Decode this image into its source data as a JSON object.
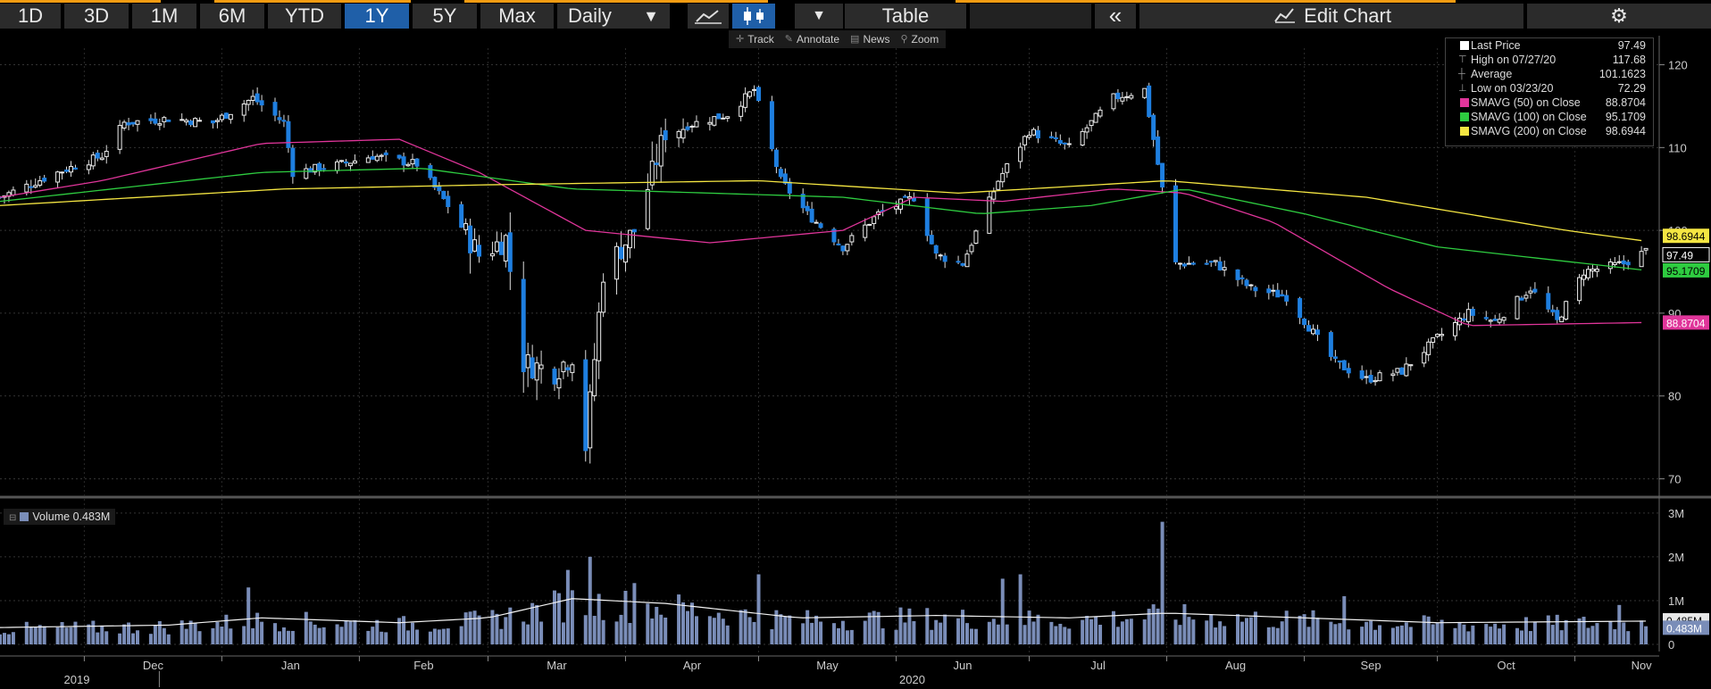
{
  "toolbar": {
    "ranges": [
      "1D",
      "3D",
      "1M",
      "6M",
      "YTD",
      "1Y",
      "5Y",
      "Max"
    ],
    "active_range": "1Y",
    "frequency": "Daily",
    "table_label": "Table",
    "edit_chart_label": "Edit Chart"
  },
  "subtoolbar": {
    "track": "Track",
    "annotate": "Annotate",
    "news": "News",
    "zoom": "Zoom"
  },
  "legend": {
    "last_price": {
      "label": "Last Price",
      "value": "97.49"
    },
    "high": {
      "label": "High on 07/27/20",
      "value": "117.68"
    },
    "average": {
      "label": "Average",
      "value": "101.1623"
    },
    "low": {
      "label": "Low on 03/23/20",
      "value": "72.29"
    },
    "sma50": {
      "label": "SMAVG (50)  on Close",
      "value": "88.8704",
      "color": "#e0359a"
    },
    "sma100": {
      "label": "SMAVG (100)  on Close",
      "value": "95.1709",
      "color": "#2ecc40"
    },
    "sma200": {
      "label": "SMAVG (200)  on Close",
      "value": "98.6944",
      "color": "#f5e642"
    }
  },
  "volume_legend": {
    "label": "Volume",
    "value": "0.483M"
  },
  "chart_data": [
    {
      "type": "candlestick",
      "title": "",
      "y_ticks": [
        70,
        80,
        90,
        100,
        110,
        120
      ],
      "ylim": [
        68,
        122
      ],
      "x_tick_labels": [
        "Dec",
        "Jan",
        "Feb",
        "Mar",
        "Apr",
        "May",
        "Jun",
        "Jul",
        "Aug",
        "Sep",
        "Oct",
        "Nov"
      ],
      "year_labels": [
        "2019",
        "2020"
      ],
      "close_anchors": [
        [
          "2019-11-12",
          104
        ],
        [
          "2019-11-25",
          107
        ],
        [
          "2019-12-05",
          109
        ],
        [
          "2019-12-10",
          113
        ],
        [
          "2019-12-20",
          113.5
        ],
        [
          "2019-12-30",
          113
        ],
        [
          "2020-01-08",
          116
        ],
        [
          "2020-01-15",
          113
        ],
        [
          "2020-01-17",
          107
        ],
        [
          "2020-01-28",
          108
        ],
        [
          "2020-02-04",
          109
        ],
        [
          "2020-02-14",
          108
        ],
        [
          "2020-02-21",
          103
        ],
        [
          "2020-02-28",
          97
        ],
        [
          "2020-03-05",
          99
        ],
        [
          "2020-03-09",
          84
        ],
        [
          "2020-03-16",
          83
        ],
        [
          "2020-03-20",
          85
        ],
        [
          "2020-03-23",
          74
        ],
        [
          "2020-03-27",
          95
        ],
        [
          "2020-04-03",
          100
        ],
        [
          "2020-04-10",
          112
        ],
        [
          "2020-04-17",
          113
        ],
        [
          "2020-04-24",
          114
        ],
        [
          "2020-04-30",
          117
        ],
        [
          "2020-05-06",
          106
        ],
        [
          "2020-05-12",
          102
        ],
        [
          "2020-05-20",
          98
        ],
        [
          "2020-05-28",
          102
        ],
        [
          "2020-06-05",
          104
        ],
        [
          "2020-06-10",
          97
        ],
        [
          "2020-06-16",
          96
        ],
        [
          "2020-06-24",
          106
        ],
        [
          "2020-07-01",
          112
        ],
        [
          "2020-07-10",
          110
        ],
        [
          "2020-07-20",
          116
        ],
        [
          "2020-07-27",
          117
        ],
        [
          "2020-08-03",
          96
        ],
        [
          "2020-08-12",
          96
        ],
        [
          "2020-08-20",
          93
        ],
        [
          "2020-08-28",
          92
        ],
        [
          "2020-09-08",
          84
        ],
        [
          "2020-09-15",
          82
        ],
        [
          "2020-09-23",
          83
        ],
        [
          "2020-10-01",
          87
        ],
        [
          "2020-10-08",
          90
        ],
        [
          "2020-10-14",
          89
        ],
        [
          "2020-10-22",
          93
        ],
        [
          "2020-10-28",
          89
        ],
        [
          "2020-11-03",
          95
        ],
        [
          "2020-11-12",
          96
        ],
        [
          "2020-11-17",
          97.49
        ]
      ],
      "series": [
        {
          "name": "SMAVG (50) on Close",
          "color": "#e0359a",
          "points": [
            [
              "2019-11-12",
              104
            ],
            [
              "2019-12-05",
              106
            ],
            [
              "2020-01-10",
              110.5
            ],
            [
              "2020-02-10",
              111
            ],
            [
              "2020-02-28",
              107
            ],
            [
              "2020-03-23",
              100
            ],
            [
              "2020-04-20",
              98.5
            ],
            [
              "2020-05-20",
              100
            ],
            [
              "2020-06-05",
              104
            ],
            [
              "2020-06-25",
              103.5
            ],
            [
              "2020-07-20",
              105
            ],
            [
              "2020-08-05",
              104.5
            ],
            [
              "2020-08-25",
              101
            ],
            [
              "2020-09-20",
              93
            ],
            [
              "2020-10-08",
              88.5
            ],
            [
              "2020-11-17",
              88.8704
            ]
          ]
        },
        {
          "name": "SMAVG (100) on Close",
          "color": "#2ecc40",
          "points": [
            [
              "2019-11-12",
              103.5
            ],
            [
              "2020-01-10",
              107
            ],
            [
              "2020-02-15",
              107.5
            ],
            [
              "2020-03-20",
              105
            ],
            [
              "2020-04-20",
              104.5
            ],
            [
              "2020-05-20",
              104
            ],
            [
              "2020-06-20",
              102
            ],
            [
              "2020-07-15",
              103
            ],
            [
              "2020-08-05",
              105
            ],
            [
              "2020-09-01",
              102
            ],
            [
              "2020-10-01",
              98
            ],
            [
              "2020-11-17",
              95.1709
            ]
          ]
        },
        {
          "name": "SMAVG (200) on Close",
          "color": "#f5e642",
          "points": [
            [
              "2019-11-12",
              103
            ],
            [
              "2020-01-15",
              105
            ],
            [
              "2020-03-01",
              105.5
            ],
            [
              "2020-05-01",
              106
            ],
            [
              "2020-06-15",
              104.5
            ],
            [
              "2020-08-01",
              106
            ],
            [
              "2020-09-15",
              104
            ],
            [
              "2020-10-30",
              100
            ],
            [
              "2020-11-17",
              98.6944
            ]
          ]
        }
      ]
    },
    {
      "type": "bar",
      "title": "Volume",
      "y_ticks_labels": [
        "0",
        "1M",
        "2M",
        "3M"
      ],
      "ylim": [
        0,
        3.2
      ],
      "volume_anchors_M": [
        [
          "2019-11-12",
          0.35
        ],
        [
          "2019-12-20",
          0.4
        ],
        [
          "2020-01-10",
          0.55
        ],
        [
          "2020-02-10",
          0.45
        ],
        [
          "2020-03-01",
          0.55
        ],
        [
          "2020-03-20",
          0.95
        ],
        [
          "2020-04-10",
          0.85
        ],
        [
          "2020-05-10",
          0.55
        ],
        [
          "2020-06-10",
          0.6
        ],
        [
          "2020-07-10",
          0.55
        ],
        [
          "2020-08-01",
          0.65
        ],
        [
          "2020-09-01",
          0.55
        ],
        [
          "2020-10-01",
          0.45
        ],
        [
          "2020-11-17",
          0.483
        ]
      ],
      "volume_spikes_M": [
        [
          "2020-01-07",
          1.3
        ],
        [
          "2020-03-19",
          1.7
        ],
        [
          "2020-03-24",
          2.0
        ],
        [
          "2020-04-03",
          1.4
        ],
        [
          "2020-05-01",
          1.6
        ],
        [
          "2020-06-25",
          1.5
        ],
        [
          "2020-06-29",
          1.6
        ],
        [
          "2020-07-31",
          2.8
        ],
        [
          "2020-08-02",
          1.1
        ],
        [
          "2020-09-10",
          1.1
        ],
        [
          "2020-11-11",
          0.9
        ]
      ],
      "avg_line_label": "0.485M",
      "last_value_label": "0.483M"
    }
  ],
  "axis_badges": {
    "sma200": "98.6944",
    "last": "97.49",
    "sma100": "95.1709",
    "sma50": "88.8704"
  }
}
